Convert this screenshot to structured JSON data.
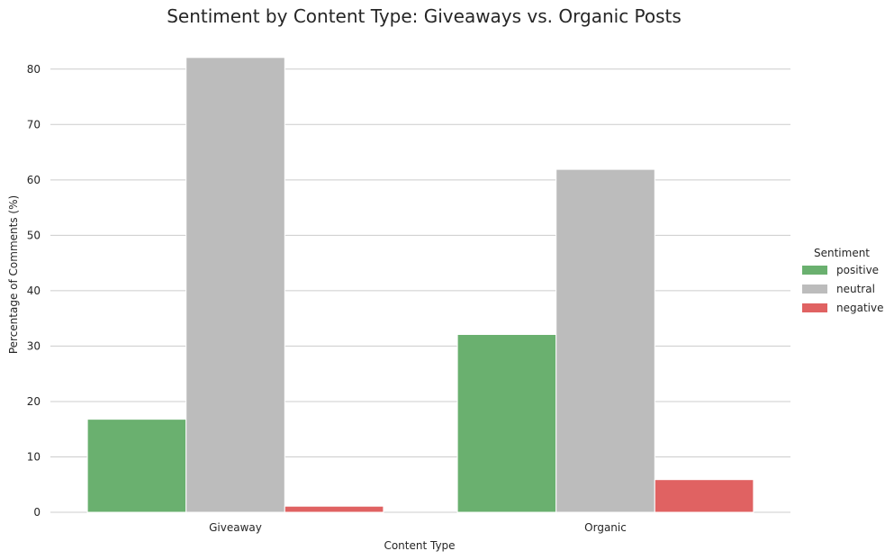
{
  "chart_data": {
    "type": "bar",
    "title": "Sentiment by Content Type: Giveaways vs. Organic Posts",
    "xlabel": "Content Type",
    "ylabel": "Percentage of Comments (%)",
    "categories": [
      "Giveaway",
      "Organic"
    ],
    "series": [
      {
        "name": "positive",
        "values": [
          16.8,
          32.1
        ],
        "color": "#6ab06f"
      },
      {
        "name": "neutral",
        "values": [
          82.1,
          61.9
        ],
        "color": "#bcbcbc"
      },
      {
        "name": "negative",
        "values": [
          1.1,
          5.9
        ],
        "color": "#e06262"
      }
    ],
    "ylim": [
      0,
      85
    ],
    "yticks": [
      0,
      10,
      20,
      30,
      40,
      50,
      60,
      70,
      80
    ],
    "grid": "horizontal",
    "legend": {
      "title": "Sentiment",
      "placement": "right"
    }
  }
}
